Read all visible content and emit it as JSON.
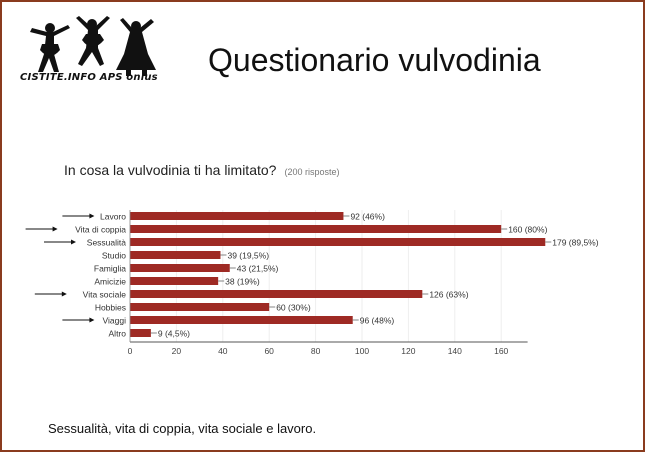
{
  "header": {
    "title": "Questionario vulvodinia",
    "logo_text": "CISTITE.INFO APS onlus"
  },
  "question": {
    "text": "In cosa la vulvodinia ti ha limitato?",
    "responses": "(200 risposte)"
  },
  "footer": {
    "text": "Sessualità, vita di coppia, vita sociale e lavoro."
  },
  "colors": {
    "bar": "#9e2a24",
    "frame": "#8a3b1e"
  },
  "chart_data": {
    "type": "bar",
    "orientation": "horizontal",
    "categories": [
      "Lavoro",
      "Vita di coppia",
      "Sessualità",
      "Studio",
      "Famiglia",
      "Amicizie",
      "Vita sociale",
      "Hobbies",
      "Viaggi",
      "Altro"
    ],
    "values": [
      92,
      160,
      179,
      39,
      43,
      38,
      126,
      60,
      96,
      9
    ],
    "data_labels": [
      "92 (46%)",
      "160 (80%)",
      "179 (89,5%)",
      "39 (19,5%)",
      "43 (21,5%)",
      "38 (19%)",
      "126 (63%)",
      "60 (30%)",
      "96 (48%)",
      "9 (4,5%)"
    ],
    "xticks": [
      0,
      20,
      40,
      60,
      80,
      100,
      120,
      140,
      160
    ],
    "xlim": [
      0,
      180
    ],
    "arrow_marked": [
      "Lavoro",
      "Vita di coppia",
      "Sessualità",
      "Vita sociale",
      "Viaggi"
    ]
  }
}
